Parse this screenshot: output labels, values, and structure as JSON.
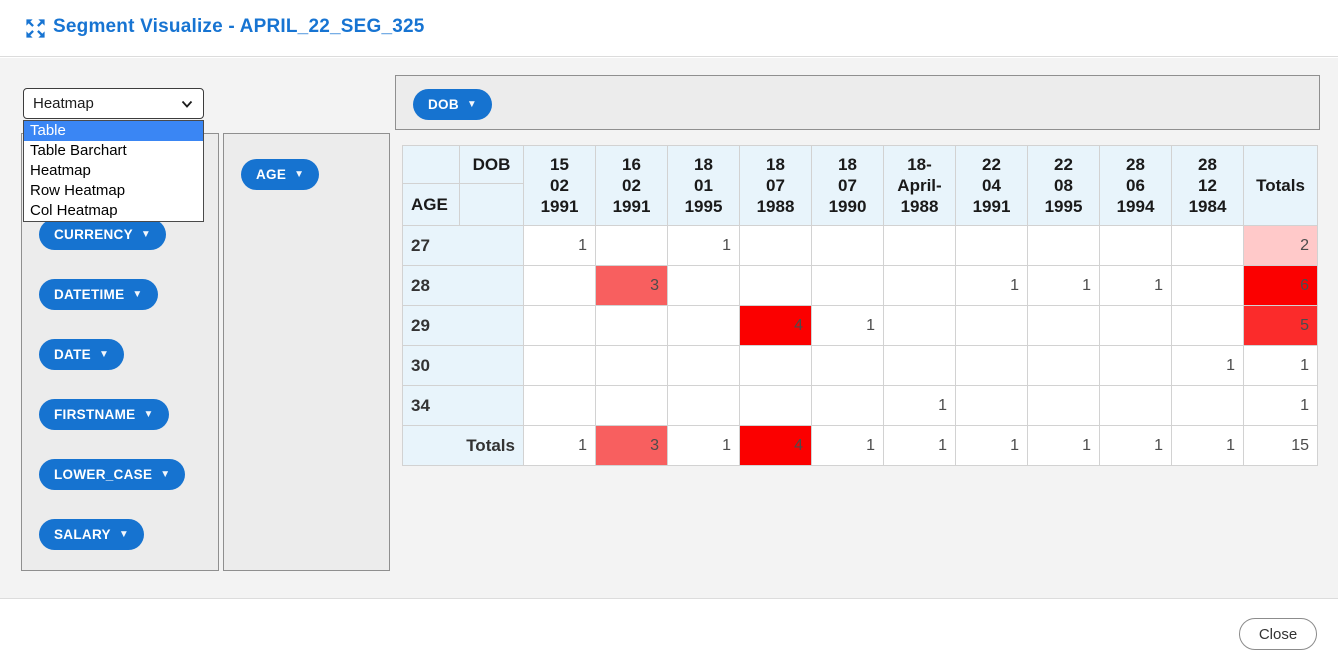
{
  "header": {
    "title": "Segment Visualize - APRIL_22_SEG_325"
  },
  "toolbar": {
    "renderer_select": {
      "value": "Heatmap",
      "options": [
        "Table",
        "Table Barchart",
        "Heatmap",
        "Row Heatmap",
        "Col Heatmap"
      ],
      "highlighted_option": "Table"
    }
  },
  "fields": {
    "unused": [
      "CURRENCY",
      "DATETIME",
      "DATE",
      "FIRSTNAME",
      "LOWER_CASE",
      "SALARY"
    ],
    "row_fields": [
      "AGE"
    ],
    "col_fields": [
      "DOB"
    ]
  },
  "pivot": {
    "col_axis_label": "DOB",
    "row_axis_label": "AGE",
    "col_headers": [
      "15\n02\n1991",
      "16\n02\n1991",
      "18\n01\n1995",
      "18\n07\n1988",
      "18\n07\n1990",
      "18-\nApril-\n1988",
      "22\n04\n1991",
      "22\n08\n1995",
      "28\n06\n1994",
      "28\n12\n1984",
      "Totals"
    ],
    "rows": [
      {
        "label": "27",
        "values": [
          "1",
          "",
          "1",
          "",
          "",
          "",
          "",
          "",
          "",
          "",
          "2"
        ],
        "bg": [
          "",
          "",
          "",
          "",
          "",
          "",
          "",
          "",
          "",
          "",
          "#ffc9c9"
        ]
      },
      {
        "label": "28",
        "values": [
          "",
          "3",
          "",
          "",
          "",
          "",
          "1",
          "1",
          "1",
          "",
          "6"
        ],
        "bg": [
          "",
          "#f85f5f",
          "",
          "",
          "",
          "",
          "",
          "",
          "",
          "",
          "#fb0000"
        ]
      },
      {
        "label": "29",
        "values": [
          "",
          "",
          "",
          "4",
          "1",
          "",
          "",
          "",
          "",
          "",
          "5"
        ],
        "bg": [
          "",
          "",
          "",
          "#fb0000",
          "",
          "",
          "",
          "",
          "",
          "",
          "#fb2b2b"
        ]
      },
      {
        "label": "30",
        "values": [
          "",
          "",
          "",
          "",
          "",
          "",
          "",
          "",
          "",
          "1",
          "1"
        ],
        "bg": [
          "",
          "",
          "",
          "",
          "",
          "",
          "",
          "",
          "",
          "",
          ""
        ]
      },
      {
        "label": "34",
        "values": [
          "",
          "",
          "",
          "",
          "",
          "1",
          "",
          "",
          "",
          "",
          "1"
        ],
        "bg": [
          "",
          "",
          "",
          "",
          "",
          "",
          "",
          "",
          "",
          "",
          ""
        ]
      },
      {
        "label": "Totals",
        "values": [
          "1",
          "3",
          "1",
          "4",
          "1",
          "1",
          "1",
          "1",
          "1",
          "1",
          "15"
        ],
        "bg": [
          "",
          "#f85f5f",
          "",
          "#fb0000",
          "",
          "",
          "",
          "",
          "",
          "",
          ""
        ]
      }
    ]
  },
  "colors": {
    "accent_blue": "#1673d0",
    "title_blue": "#1774d2",
    "option_highlight": "#3a86f4",
    "heat_max": "#fb0000",
    "heat_high": "#fb2b2b",
    "heat_mid": "#f85f5f",
    "heat_low": "#ffc9c9",
    "header_cell_bg": "#e8f4fb"
  },
  "footer": {
    "close_label": "Close"
  }
}
